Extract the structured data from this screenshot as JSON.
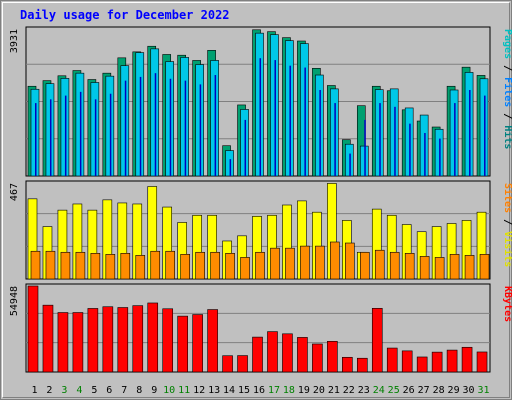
{
  "chart_data": {
    "type": "bar",
    "title": "Daily usage for December 2022",
    "categories": [
      "1",
      "2",
      "3",
      "4",
      "5",
      "6",
      "7",
      "8",
      "9",
      "10",
      "11",
      "12",
      "13",
      "14",
      "15",
      "16",
      "17",
      "18",
      "19",
      "20",
      "21",
      "22",
      "23",
      "24",
      "25",
      "26",
      "27",
      "28",
      "29",
      "30",
      "31"
    ],
    "weekend_days": [
      "3",
      "4",
      "10",
      "11",
      "17",
      "18",
      "24",
      "25",
      "31"
    ],
    "panels": [
      {
        "name": "hits-files-pages",
        "y_max_label": "3931",
        "ylim": [
          0,
          3931
        ],
        "side_labels": [
          {
            "text": "Pages",
            "color": "#00c0c0"
          },
          {
            "text": " / ",
            "color": "#000000"
          },
          {
            "text": "Files",
            "color": "#0080ff"
          },
          {
            "text": " / ",
            "color": "#000000"
          },
          {
            "text": "Hits",
            "color": "#008080"
          }
        ],
        "series": [
          {
            "name": "Hits",
            "color": "#00a070",
            "values": [
              2400,
              2550,
              2680,
              2820,
              2580,
              2750,
              3160,
              3320,
              3470,
              3250,
              3230,
              3090,
              3360,
              810,
              1900,
              3910,
              3860,
              3700,
              3610,
              2880,
              2420,
              970,
              1880,
              2400,
              2280,
              1770,
              1470,
              1310,
              2400,
              2910,
              2690
            ]
          },
          {
            "name": "Files",
            "color": "#00c8e8",
            "values": [
              2320,
              2470,
              2610,
              2750,
              2500,
              2670,
              2950,
              3300,
              3400,
              3060,
              3170,
              2980,
              3090,
              680,
              1780,
              3820,
              3780,
              3620,
              3540,
              2700,
              2330,
              850,
              800,
              2310,
              2330,
              1820,
              1630,
              1250,
              2300,
              2770,
              2600
            ]
          },
          {
            "name": "Pages",
            "color": "#0000c0",
            "values": [
              1950,
              2050,
              2150,
              2250,
              2050,
              2200,
              2550,
              2650,
              2750,
              2600,
              2550,
              2450,
              2700,
              450,
              1500,
              3150,
              3100,
              2950,
              2900,
              2300,
              1950,
              600,
              1500,
              1950,
              1850,
              1400,
              1150,
              1000,
              1950,
              2300,
              2150
            ]
          }
        ]
      },
      {
        "name": "visits-sites",
        "y_max_label": "467",
        "ylim": [
          0,
          467
        ],
        "side_labels": [
          {
            "text": "Sites",
            "color": "#ff8000"
          },
          {
            "text": " / ",
            "color": "#000000"
          },
          {
            "text": "Visits",
            "color": "#e0e000"
          }
        ],
        "series": [
          {
            "name": "Visits",
            "color": "#ffff00",
            "values": [
              390,
              255,
              335,
              365,
              335,
              385,
              370,
              365,
              450,
              350,
              275,
              310,
              310,
              185,
              210,
              305,
              310,
              360,
              380,
              325,
              465,
              285,
              130,
              340,
              310,
              265,
              230,
              255,
              270,
              285,
              325
            ]
          },
          {
            "name": "Sites",
            "color": "#ff8c00",
            "values": [
              135,
              135,
              130,
              130,
              125,
              120,
              125,
              115,
              135,
              135,
              120,
              130,
              130,
              125,
              105,
              130,
              150,
              150,
              160,
              160,
              180,
              175,
              130,
              140,
              130,
              125,
              110,
              105,
              120,
              115,
              120
            ]
          }
        ]
      },
      {
        "name": "kbytes",
        "y_max_label": "54948",
        "ylim": [
          0,
          54948
        ],
        "side_labels": [
          {
            "text": "KBytes",
            "color": "#ff0000"
          }
        ],
        "series": [
          {
            "name": "KBytes",
            "color": "#ff0000",
            "values": [
              54948,
              42700,
              38000,
              38000,
              40600,
              41700,
              41200,
              42400,
              44100,
              40400,
              35700,
              36700,
              39900,
              10400,
              10500,
              22300,
              25800,
              24400,
              22100,
              17900,
              19600,
              9400,
              8800,
              40700,
              15300,
              13500,
              9600,
              12700,
              14000,
              15800,
              12800
            ]
          }
        ]
      }
    ]
  },
  "colors": {
    "background": "#c0c0c0",
    "plot_background": "#c0c0c0",
    "grid": "#808080",
    "weekday_label": "#000000",
    "weekend_label": "#008000",
    "title": "#0000ff"
  }
}
